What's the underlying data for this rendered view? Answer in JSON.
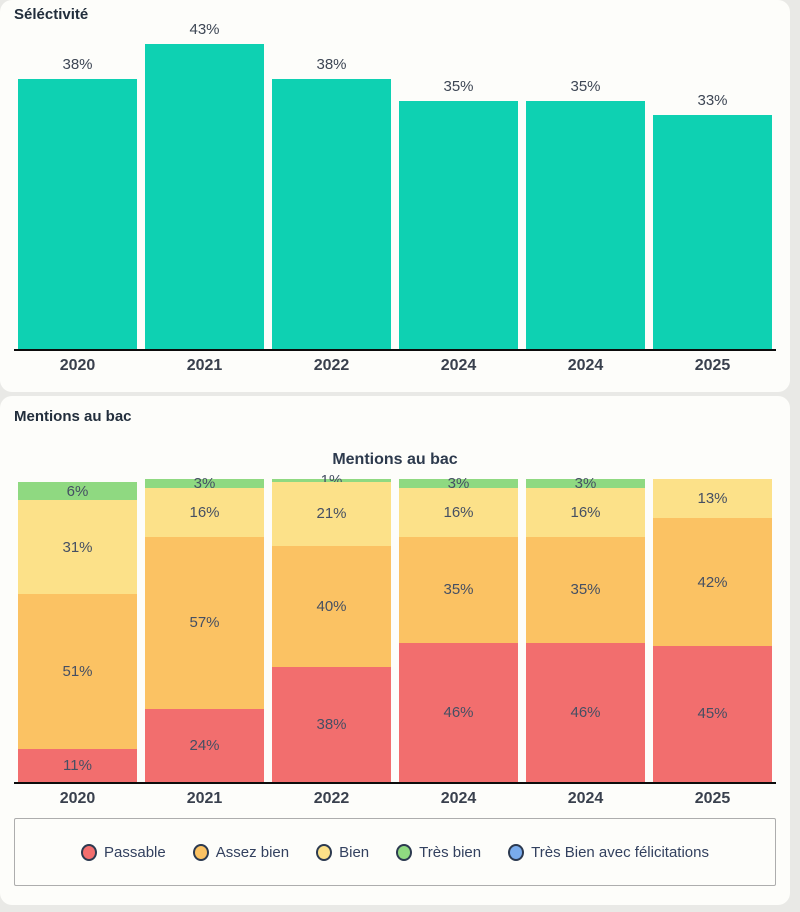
{
  "page": {
    "background": "#e9e9e6",
    "card_background": "#fdfdfa"
  },
  "selectivity_section": {
    "heading": "Séléctivité"
  },
  "mentions_section": {
    "heading": "Mentions au bac",
    "chart_title": "Mentions au bac"
  },
  "chart_data": [
    {
      "type": "bar",
      "title": "Séléctivité",
      "categories": [
        "2020",
        "2021",
        "2022",
        "2024",
        "2024",
        "2025"
      ],
      "values": [
        38,
        43,
        38,
        35,
        35,
        33
      ],
      "value_labels": [
        "38%",
        "43%",
        "38%",
        "35%",
        "35%",
        "33%"
      ],
      "unit": "%",
      "bar_color": "#0ed1b2",
      "ylim": [
        0,
        43
      ],
      "grid": false,
      "legend_position": "none",
      "xlabel": "",
      "ylabel": ""
    },
    {
      "type": "stacked-bar",
      "title": "Mentions au bac",
      "categories": [
        "2020",
        "2021",
        "2022",
        "2024",
        "2024",
        "2025"
      ],
      "series": [
        {
          "name": "Passable",
          "color": "#f26e6e",
          "values": [
            11,
            24,
            38,
            46,
            46,
            45
          ]
        },
        {
          "name": "Assez bien",
          "color": "#fbc263",
          "values": [
            51,
            57,
            40,
            35,
            35,
            42
          ]
        },
        {
          "name": "Bien",
          "color": "#fce189",
          "values": [
            31,
            16,
            21,
            16,
            16,
            13
          ]
        },
        {
          "name": "Très bien",
          "color": "#8fd981",
          "values": [
            6,
            3,
            1,
            3,
            3,
            0
          ]
        },
        {
          "name": "Très Bien avec félicitations",
          "color": "#79abec",
          "values": [
            0,
            0,
            0,
            0,
            0,
            0
          ]
        }
      ],
      "unit": "%",
      "ylim": [
        0,
        100
      ],
      "grid": false,
      "legend_position": "bottom",
      "xlabel": "",
      "ylabel": ""
    }
  ]
}
